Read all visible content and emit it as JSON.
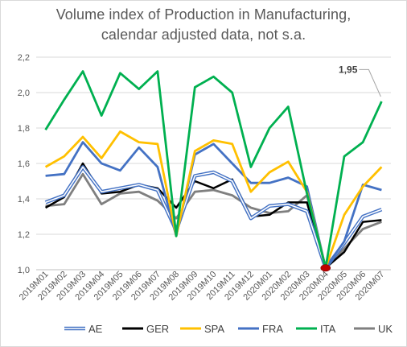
{
  "chart_data": {
    "type": "line",
    "title_lines": [
      "Volume index of Production in Manufacturing,",
      "calendar adjusted data, not s.a."
    ],
    "xlabel": "",
    "ylabel": "",
    "ylim": [
      1.0,
      2.2
    ],
    "yticks": [
      "1,0",
      "1,2",
      "1,4",
      "1,6",
      "1,8",
      "2,0",
      "2,2"
    ],
    "grid": true,
    "legend_position": "bottom",
    "categories": [
      "2019M01",
      "2019M02",
      "2019M03",
      "2019M04",
      "2019M05",
      "2019M06",
      "2019M07",
      "2019M08",
      "2019M09",
      "2019M10",
      "2019M11",
      "2019M12",
      "2020M01",
      "2020M02",
      "2020M03",
      "2020M04",
      "2020M05",
      "2020M06",
      "2020M07"
    ],
    "series": [
      {
        "name": "AE",
        "color": "#4472c4",
        "style": "double",
        "values": [
          1.38,
          1.42,
          1.58,
          1.44,
          1.46,
          1.48,
          1.45,
          1.22,
          1.53,
          1.55,
          1.5,
          1.29,
          1.36,
          1.37,
          1.33,
          1.01,
          1.15,
          1.3,
          1.34
        ]
      },
      {
        "name": "GER",
        "color": "#000000",
        "style": "solid",
        "values": [
          1.35,
          1.41,
          1.6,
          1.43,
          1.44,
          1.48,
          1.46,
          1.35,
          1.5,
          1.46,
          1.51,
          1.3,
          1.31,
          1.38,
          1.38,
          1.01,
          1.1,
          1.27,
          1.28
        ]
      },
      {
        "name": "SPA",
        "color": "#ffc000",
        "style": "solid",
        "values": [
          1.58,
          1.64,
          1.75,
          1.63,
          1.78,
          1.72,
          1.71,
          1.19,
          1.67,
          1.73,
          1.71,
          1.44,
          1.55,
          1.61,
          1.44,
          1.01,
          1.31,
          1.47,
          1.58
        ]
      },
      {
        "name": "FRA",
        "color": "#4472c4",
        "style": "solid",
        "values": [
          1.53,
          1.54,
          1.72,
          1.6,
          1.56,
          1.69,
          1.58,
          1.19,
          1.65,
          1.71,
          1.6,
          1.49,
          1.49,
          1.52,
          1.47,
          1.01,
          1.16,
          1.48,
          1.45
        ]
      },
      {
        "name": "ITA",
        "color": "#00b050",
        "style": "solid",
        "values": [
          1.79,
          1.96,
          2.12,
          1.87,
          2.11,
          2.02,
          2.12,
          1.19,
          2.03,
          2.09,
          2.0,
          1.58,
          1.8,
          1.92,
          1.43,
          1.01,
          1.64,
          1.72,
          1.95
        ]
      },
      {
        "name": "UK",
        "color": "#7f7f7f",
        "style": "solid",
        "values": [
          1.36,
          1.37,
          1.54,
          1.37,
          1.43,
          1.44,
          1.39,
          1.29,
          1.44,
          1.45,
          1.42,
          1.35,
          1.32,
          1.33,
          1.42,
          1.01,
          1.12,
          1.23,
          1.27
        ]
      }
    ],
    "annotations": [
      {
        "text": "1,95",
        "series": "ITA",
        "category": "2020M07",
        "value": 1.95
      }
    ],
    "highlight_marker": {
      "series": "ITA",
      "category": "2020M04",
      "value": 1.01,
      "color": "#c00000"
    }
  }
}
